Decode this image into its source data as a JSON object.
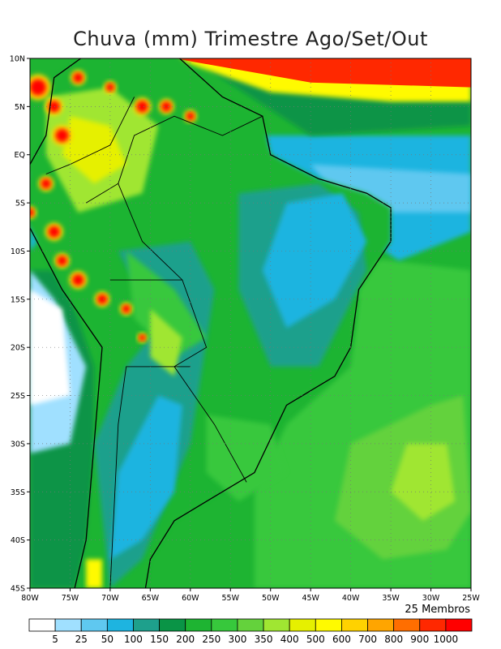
{
  "title": "Chuva (mm) Trimestre Ago/Set/Out",
  "members_label": "25 Membros",
  "map": {
    "lon_range": [
      -80,
      -25
    ],
    "lat_range": [
      -45,
      10
    ],
    "lon_ticks": [
      "80W",
      "75W",
      "70W",
      "65W",
      "60W",
      "55W",
      "50W",
      "45W",
      "40W",
      "35W",
      "30W",
      "25W"
    ],
    "lat_ticks": [
      "10N",
      "5N",
      "EQ",
      "5S",
      "10S",
      "15S",
      "20S",
      "25S",
      "30S",
      "35S",
      "40S",
      "45S"
    ],
    "grid": "dotted"
  },
  "legend": {
    "labels": [
      "5",
      "25",
      "50",
      "100",
      "150",
      "200",
      "250",
      "300",
      "350",
      "400",
      "500",
      "600",
      "700",
      "800",
      "900",
      "1000"
    ],
    "colors": [
      "#ffffff",
      "#a0e0ff",
      "#5fc8f0",
      "#1eb4e0",
      "#1ea08c",
      "#0a9446",
      "#1eb432",
      "#37c83c",
      "#64d23c",
      "#a0e632",
      "#e6f000",
      "#fffa00",
      "#ffd200",
      "#ffa500",
      "#ff6e00",
      "#ff2800",
      "#ff0000"
    ]
  }
}
